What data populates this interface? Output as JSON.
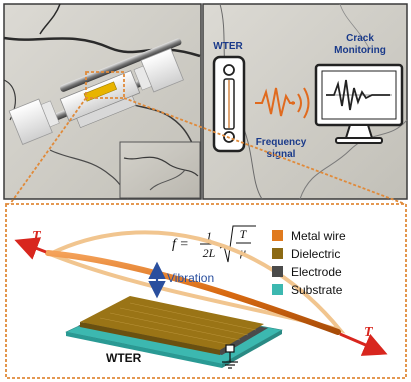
{
  "colors": {
    "frame": "#3a3a3a",
    "dotted": "#e08a3a",
    "metal": "#e07a1e",
    "dielectric": "#8c6a14",
    "electrode": "#4a4a4a",
    "substrate": "#3cb8b0",
    "blue": "#2a4f9e",
    "accent_orange": "#e06a1e",
    "red": "#d8261e"
  },
  "top_left": {
    "scene": "sensor-device-on-cracked-concrete"
  },
  "top_right": {
    "wter_label": "WTER",
    "crack_label_line1": "Crack",
    "crack_label_line2": "Monitoring",
    "freq_label_line1": "Frequency",
    "freq_label_line2": "signal"
  },
  "bottom": {
    "formula_lhs": "f =",
    "formula_num": "1",
    "formula_den": "2L",
    "formula_rad_num": "T",
    "formula_rad_den": "μ",
    "tension_left": "T",
    "tension_right": "T",
    "vibration_label": "Vibration",
    "wter_label": "WTER",
    "legend": [
      {
        "label": "Metal wire",
        "color": "#e07a1e"
      },
      {
        "label": "Dielectric",
        "color": "#8c6a14"
      },
      {
        "label": "Electrode",
        "color": "#4a4a4a"
      },
      {
        "label": "Substrate",
        "color": "#3cb8b0"
      }
    ]
  }
}
